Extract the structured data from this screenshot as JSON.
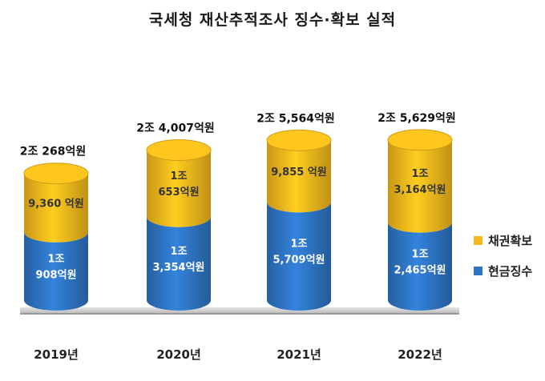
{
  "chart_data": {
    "type": "bar",
    "stacked": true,
    "title": "국세청 재산추적조사 징수·확보 실적",
    "categories": [
      "2019년",
      "2020년",
      "2021년",
      "2022년"
    ],
    "totals": [
      "2조 268억원",
      "2조 4,007억원",
      "2조 5,564억원",
      "2조 5,629억원"
    ],
    "total_values": [
      20268,
      24007,
      25564,
      25629
    ],
    "series": [
      {
        "name": "현금징수",
        "color": "#2e75c4",
        "values": [
          10908,
          13354,
          15709,
          12465
        ],
        "labels": [
          [
            "1조",
            "908억원"
          ],
          [
            "1조",
            "3,354억원"
          ],
          [
            "1조",
            "5,709억원"
          ],
          [
            "1조",
            "2,465억원"
          ]
        ]
      },
      {
        "name": "채권확보",
        "color": "#f5b81c",
        "values": [
          9360,
          10653,
          9855,
          13164
        ],
        "labels": [
          [
            "9,360 억원"
          ],
          [
            "1조",
            "653억원"
          ],
          [
            "9,855 억원"
          ],
          [
            "1조",
            "3,164억원"
          ]
        ]
      }
    ],
    "ylim": [
      0,
      26000
    ],
    "legend": "right"
  }
}
